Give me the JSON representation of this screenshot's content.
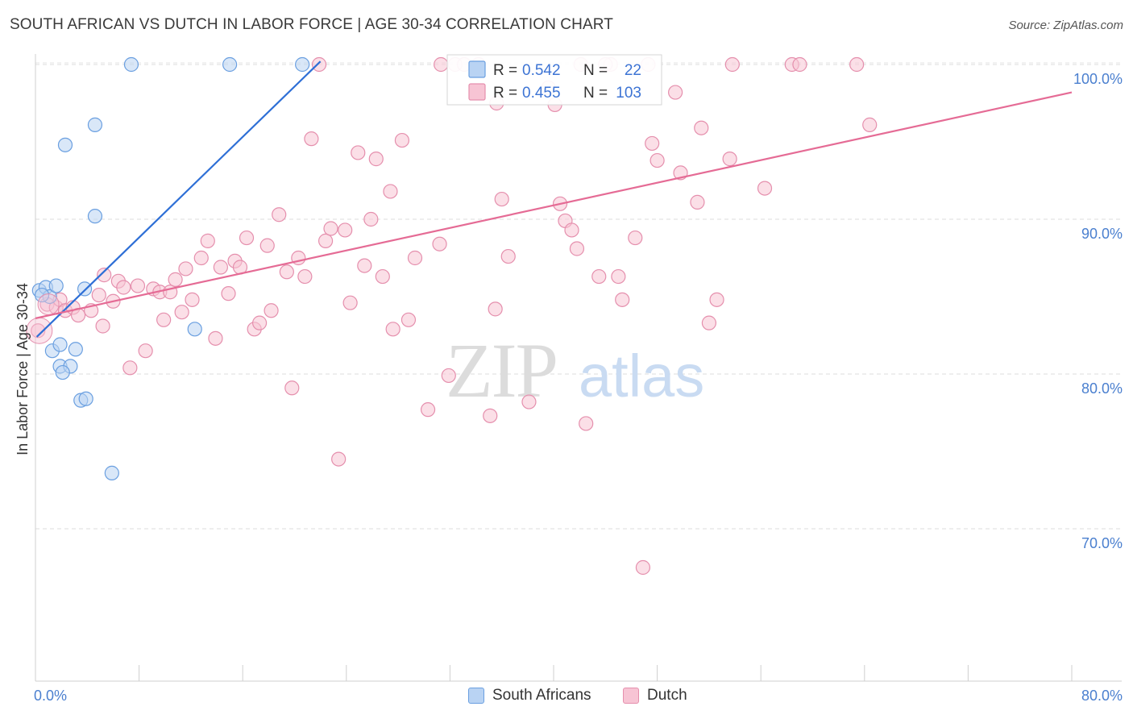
{
  "chart_data": {
    "type": "scatter",
    "title": "SOUTH AFRICAN VS DUTCH IN LABOR FORCE | AGE 30-34 CORRELATION CHART",
    "source": "Source: ZipAtlas.com",
    "ylabel": "In Labor Force | Age 30-34",
    "xlabel": "",
    "xlim": [
      0,
      80
    ],
    "ylim": [
      60.5,
      100.8
    ],
    "x_tick_labels": [
      {
        "value": 0,
        "label": "0.0%"
      },
      {
        "value": 80,
        "label": "80.0%"
      }
    ],
    "y_tick_labels": [
      {
        "value": 100,
        "label": "100.0%"
      },
      {
        "value": 90,
        "label": "90.0%"
      },
      {
        "value": 80,
        "label": "80.0%"
      },
      {
        "value": 70,
        "label": "70.0%"
      }
    ],
    "watermark": {
      "part1": "ZIP",
      "part2": "atlas"
    },
    "legend": {
      "r_label": "R =",
      "n_label": "N =",
      "rows": [
        {
          "series": "South Africans",
          "r": "0.542",
          "n": "22"
        },
        {
          "series": "Dutch",
          "r": "0.455",
          "n": "103"
        }
      ]
    },
    "series": [
      {
        "name": "South Africans",
        "color": "#6a9fe0",
        "fill": "#b9d3f3",
        "trend": {
          "x1": 0.1,
          "y1": 82.4,
          "x2": 22,
          "y2": 100.2,
          "color": "#2e6fd6"
        },
        "points": [
          [
            0.3,
            85.4
          ],
          [
            0.8,
            85.6
          ],
          [
            1.1,
            85.0
          ],
          [
            1.6,
            85.7
          ],
          [
            3.8,
            85.5
          ],
          [
            1.3,
            81.5
          ],
          [
            1.9,
            81.9
          ],
          [
            3.1,
            81.6
          ],
          [
            1.9,
            80.5
          ],
          [
            2.7,
            80.5
          ],
          [
            2.1,
            80.1
          ],
          [
            3.5,
            78.3
          ],
          [
            3.9,
            78.4
          ],
          [
            5.9,
            73.6
          ],
          [
            12.3,
            82.9
          ],
          [
            4.6,
            96.1
          ],
          [
            2.3,
            94.8
          ],
          [
            4.6,
            90.2
          ],
          [
            7.4,
            100.0
          ],
          [
            15.0,
            100.0
          ],
          [
            20.6,
            100.0
          ],
          [
            0.5,
            85.1
          ]
        ]
      },
      {
        "name": "Dutch",
        "color": "#e58fad",
        "fill": "#f7c4d4",
        "trend": {
          "x1": 0.0,
          "y1": 83.6,
          "x2": 80,
          "y2": 98.2,
          "color": "#e56b95"
        },
        "points": [
          [
            0.2,
            82.8
          ],
          [
            0.9,
            84.5
          ],
          [
            1.6,
            84.3
          ],
          [
            1.9,
            84.8
          ],
          [
            2.3,
            84.1
          ],
          [
            2.9,
            84.3
          ],
          [
            3.3,
            83.8
          ],
          [
            4.3,
            84.1
          ],
          [
            4.9,
            85.1
          ],
          [
            5.2,
            83.1
          ],
          [
            5.3,
            86.4
          ],
          [
            6.0,
            84.7
          ],
          [
            6.4,
            86.0
          ],
          [
            6.8,
            85.6
          ],
          [
            7.3,
            80.4
          ],
          [
            7.9,
            85.7
          ],
          [
            8.5,
            81.5
          ],
          [
            9.1,
            85.5
          ],
          [
            9.6,
            85.3
          ],
          [
            9.9,
            83.5
          ],
          [
            10.4,
            85.3
          ],
          [
            10.8,
            86.1
          ],
          [
            11.3,
            84.0
          ],
          [
            11.6,
            86.8
          ],
          [
            12.1,
            84.8
          ],
          [
            12.8,
            87.5
          ],
          [
            13.3,
            88.6
          ],
          [
            13.9,
            82.3
          ],
          [
            14.3,
            86.9
          ],
          [
            14.9,
            85.2
          ],
          [
            15.4,
            87.3
          ],
          [
            15.8,
            86.9
          ],
          [
            16.3,
            88.8
          ],
          [
            16.9,
            82.9
          ],
          [
            17.3,
            83.3
          ],
          [
            17.9,
            88.3
          ],
          [
            18.2,
            84.1
          ],
          [
            18.8,
            90.3
          ],
          [
            19.4,
            86.6
          ],
          [
            19.8,
            79.1
          ],
          [
            20.3,
            87.5
          ],
          [
            20.8,
            86.3
          ],
          [
            21.3,
            95.2
          ],
          [
            21.9,
            100.0
          ],
          [
            22.4,
            88.6
          ],
          [
            22.8,
            89.4
          ],
          [
            23.4,
            74.5
          ],
          [
            23.9,
            89.3
          ],
          [
            24.3,
            84.6
          ],
          [
            24.9,
            94.3
          ],
          [
            25.4,
            87.0
          ],
          [
            25.9,
            90.0
          ],
          [
            26.3,
            93.9
          ],
          [
            26.8,
            86.3
          ],
          [
            27.4,
            91.8
          ],
          [
            27.6,
            82.9
          ],
          [
            28.3,
            95.1
          ],
          [
            28.8,
            83.5
          ],
          [
            29.3,
            87.5
          ],
          [
            30.3,
            77.7
          ],
          [
            31.2,
            88.4
          ],
          [
            31.9,
            79.9
          ],
          [
            32.4,
            100.0
          ],
          [
            33.1,
            100.0
          ],
          [
            34.2,
            100.0
          ],
          [
            35.1,
            77.3
          ],
          [
            35.5,
            84.2
          ],
          [
            36.0,
            91.3
          ],
          [
            36.5,
            87.6
          ],
          [
            38.1,
            78.2
          ],
          [
            39.6,
            98.5
          ],
          [
            40.1,
            97.4
          ],
          [
            40.5,
            91.0
          ],
          [
            40.9,
            89.9
          ],
          [
            41.4,
            89.3
          ],
          [
            41.8,
            88.1
          ],
          [
            42.1,
            100.0
          ],
          [
            42.5,
            76.8
          ],
          [
            43.5,
            86.3
          ],
          [
            44.4,
            100.0
          ],
          [
            45.0,
            86.3
          ],
          [
            45.3,
            84.8
          ],
          [
            46.3,
            88.8
          ],
          [
            46.9,
            67.5
          ],
          [
            47.3,
            100.0
          ],
          [
            47.6,
            94.9
          ],
          [
            48.0,
            93.8
          ],
          [
            49.4,
            98.2
          ],
          [
            49.8,
            93.0
          ],
          [
            51.1,
            91.1
          ],
          [
            51.4,
            95.9
          ],
          [
            52.0,
            83.3
          ],
          [
            52.6,
            84.8
          ],
          [
            53.6,
            93.9
          ],
          [
            53.8,
            100.0
          ],
          [
            56.3,
            92.0
          ],
          [
            58.4,
            100.0
          ],
          [
            59.0,
            100.0
          ],
          [
            63.4,
            100.0
          ],
          [
            64.4,
            96.1
          ],
          [
            31.3,
            100.0
          ],
          [
            44.0,
            100.0
          ],
          [
            35.6,
            97.5
          ]
        ]
      }
    ]
  },
  "bottom_legend": [
    {
      "label": "South Africans"
    },
    {
      "label": "Dutch"
    }
  ]
}
